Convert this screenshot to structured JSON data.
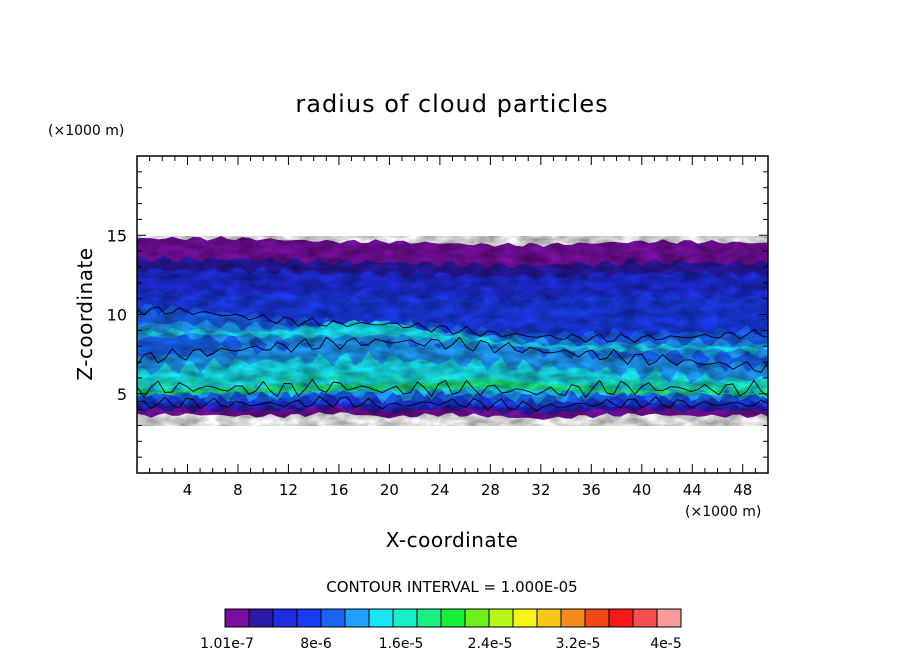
{
  "chart_data": {
    "type": "heatmap",
    "title": "radius of cloud particles",
    "xlabel": "X-coordinate",
    "ylabel": "Z-coordinate",
    "x_unit": "(×1000 m)",
    "y_unit": "(×1000 m)",
    "xlim": [
      0,
      50
    ],
    "ylim": [
      0,
      20
    ],
    "x_ticks": [
      "4",
      "8",
      "12",
      "16",
      "20",
      "24",
      "28",
      "32",
      "36",
      "40",
      "44",
      "48"
    ],
    "y_ticks": [
      "5",
      "10",
      "15"
    ],
    "contour_interval": "CONTOUR INTERVAL = 1.000E-05",
    "colorbar": {
      "colors": [
        "#7a0fa3",
        "#2a1aa8",
        "#1f2de0",
        "#1a3cf0",
        "#1964f5",
        "#1fa0ff",
        "#19e6f5",
        "#19f0c8",
        "#19ef82",
        "#19ee37",
        "#6ef019",
        "#b8f519",
        "#f5f519",
        "#f5c819",
        "#f58c19",
        "#f54619",
        "#f51919",
        "#f55050",
        "#f79a9a"
      ],
      "labels": [
        "1.01e-7",
        "8e-6",
        "1.6e-5",
        "2.4e-5",
        "3.2e-5",
        "4e-5"
      ]
    },
    "cloud_top_km": [
      14.8,
      14.8,
      14.8,
      14.7,
      14.6,
      14.6,
      14.5,
      14.4,
      14.4,
      14.5,
      14.6,
      14.6,
      14.5
    ],
    "cloud_base_km": [
      3.6,
      3.7,
      3.6,
      3.6,
      3.8,
      3.5,
      3.7,
      3.6,
      3.4,
      3.6,
      3.7,
      3.6,
      3.6
    ],
    "contour_x_km": [
      0,
      4,
      8,
      12,
      16,
      20,
      24,
      28,
      32,
      36,
      40,
      44,
      50
    ]
  }
}
